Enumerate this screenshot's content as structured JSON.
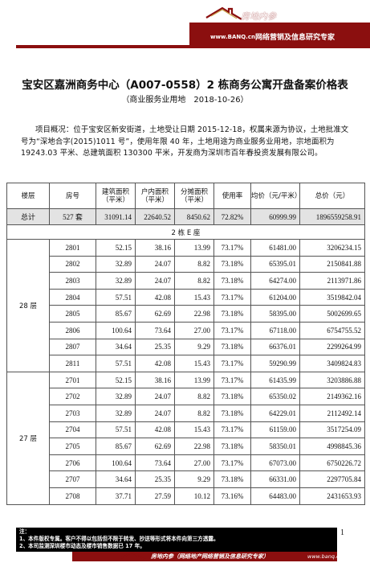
{
  "brand": {
    "name": "房地内参",
    "url": "www.BANQ.cn",
    "slogan": "网络营销及信息研究专家",
    "accent_color": "#8b0f0f"
  },
  "doc": {
    "title": "宝安区嘉洲商务中心（A007-0558）2 栋商务公寓开盘备案价格表",
    "subtitle": "（商业服务业用地　2018-10-26）",
    "overview": "项目概况：位于宝安区新安街道，土地受让日期 2015-12-18，权属来源为协议，土地批准文号为“深地合字(2015)1011 号”，使用年限 40 年，土地用途为商业服务业用地，宗地面积为 19243.03 平米、总建筑面积 130300 平米，开发商为深圳市百年春投资发展有限公司。"
  },
  "table": {
    "headers": {
      "floor": "楼层",
      "room": "房号",
      "build_area": "建筑面积（平米）",
      "inner_area": "户内面积（平米）",
      "shared_area": "分摊面积（平米）",
      "usage_rate": "使用率",
      "unit_price": "均价（元/平米）",
      "total_price": "总价（元）"
    },
    "total": {
      "label": "总计",
      "rooms": "527 套",
      "build_area": "31091.14",
      "inner_area": "22640.52",
      "shared_area": "8450.62",
      "usage_rate": "72.82%",
      "unit_price": "60999.99",
      "total_price": "1896559258.91"
    },
    "section": "2 栋 E 座",
    "groups": [
      {
        "floor": "28 层",
        "rows": [
          [
            "2801",
            "52.15",
            "38.16",
            "13.99",
            "73.17%",
            "61481.00",
            "3206234.15"
          ],
          [
            "2802",
            "32.89",
            "24.07",
            "8.82",
            "73.18%",
            "65395.01",
            "2150841.88"
          ],
          [
            "2803",
            "32.89",
            "24.07",
            "8.82",
            "73.18%",
            "64274.00",
            "2113971.86"
          ],
          [
            "2804",
            "57.51",
            "42.08",
            "15.43",
            "73.17%",
            "61204.00",
            "3519842.04"
          ],
          [
            "2805",
            "85.67",
            "62.69",
            "22.98",
            "73.18%",
            "58395.00",
            "5002699.65"
          ],
          [
            "2806",
            "100.64",
            "73.64",
            "27.00",
            "73.17%",
            "67118.00",
            "6754755.52"
          ],
          [
            "2807",
            "34.64",
            "25.35",
            "9.29",
            "73.18%",
            "66376.01",
            "2299264.99"
          ],
          [
            "2811",
            "57.51",
            "42.08",
            "15.43",
            "73.17%",
            "59290.99",
            "3409824.83"
          ]
        ]
      },
      {
        "floor": "27 层",
        "rows": [
          [
            "2701",
            "52.15",
            "38.16",
            "13.99",
            "73.17%",
            "61435.99",
            "3203886.88"
          ],
          [
            "2702",
            "32.89",
            "24.07",
            "8.82",
            "73.18%",
            "65350.02",
            "2149362.16"
          ],
          [
            "2703",
            "32.89",
            "24.07",
            "8.82",
            "73.18%",
            "64229.01",
            "2112492.14"
          ],
          [
            "2704",
            "57.51",
            "42.08",
            "15.43",
            "73.17%",
            "61159.00",
            "3517254.09"
          ],
          [
            "2705",
            "85.67",
            "62.69",
            "22.98",
            "73.18%",
            "58350.01",
            "4998845.36"
          ],
          [
            "2706",
            "100.64",
            "73.64",
            "27.00",
            "73.17%",
            "67073.00",
            "6750226.72"
          ],
          [
            "2707",
            "34.64",
            "25.35",
            "9.29",
            "73.18%",
            "66331.00",
            "2297705.84"
          ],
          [
            "2708",
            "37.71",
            "27.59",
            "10.12",
            "73.16%",
            "64483.00",
            "2431653.93"
          ]
        ]
      }
    ]
  },
  "footer": {
    "notes_title": "注：",
    "note1": "1、本件版权专属。客户不得以包括但不限于转发、抄送等形式将本件向第三方透露。",
    "note2": "2、本司监测深圳楼市动态及楼市销售数据已 17 年。",
    "page": "1",
    "bar_text": "房地内参（网络地产网络营销及信息研究专家）",
    "bar_url": "www.banq.cn"
  }
}
